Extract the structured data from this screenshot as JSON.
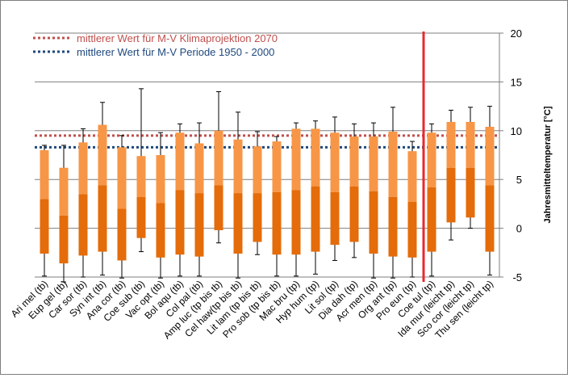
{
  "chart_data": {
    "type": "box",
    "ylabel": "Jahresmitteltemperatur [°C]",
    "ylim": [
      -5,
      20
    ],
    "yticks": [
      -5,
      0,
      5,
      10,
      15,
      20
    ],
    "grid": "horizontal",
    "legend_position": "top-left",
    "colors": {
      "upper_box": "#f79646",
      "lower_box": "#e46c0a",
      "whisker": "#000000",
      "line_2070": "#c0504d",
      "line_1950_2000": "#1f497d",
      "divider": "#e8282f"
    },
    "reference_lines": [
      {
        "name": "mittlerer Wert für M-V Klimaprojektion 2070",
        "value": 9.5,
        "style": "dotted"
      },
      {
        "name": "mittlerer Wert für M-V Periode 1950 - 2000",
        "value": 8.3,
        "style": "dotted"
      }
    ],
    "divider_after_index": 19,
    "categories": [
      "Ari mel (tb)",
      "Eup gel (tb)",
      "Car sor (tb)",
      "Syn int (tb)",
      "Ana cor (tb)",
      "Coe sub (tb)",
      "Vac opt (tb)",
      "Bol aqu (tb)",
      "Col pal (tb)",
      "Amp luc (tp bis tb)",
      "Cel haw(tp bis tb)",
      "Lit lam (tp bis tb)",
      "Pro sob (tp bis tb)",
      "Mac bru (tp)",
      "Hyp hum (tp)",
      "Lit sol (tp)",
      "Dia dah (tp)",
      "Acr men (tp)",
      "Org ant (tp)",
      "Pro eun (tp)",
      "Coe tul (tp)",
      "Ida mur (leicht tp)",
      "Sco cor (leicht tp)",
      "Thu sen (leicht tp)"
    ],
    "boxes": [
      {
        "min": -4.9,
        "q1": -2.6,
        "median": 3.0,
        "q3": 8.0,
        "max": 8.5
      },
      {
        "min": -5.5,
        "q1": -3.6,
        "median": 1.3,
        "q3": 6.2,
        "max": 8.5
      },
      {
        "min": -5.0,
        "q1": -2.8,
        "median": 3.5,
        "q3": 8.8,
        "max": 10.2
      },
      {
        "min": -4.8,
        "q1": -2.4,
        "median": 4.4,
        "q3": 10.6,
        "max": 12.9
      },
      {
        "min": -5.1,
        "q1": -3.3,
        "median": 2.0,
        "q3": 8.3,
        "max": 9.5
      },
      {
        "min": -2.4,
        "q1": -1.0,
        "median": 3.2,
        "q3": 7.4,
        "max": 14.3
      },
      {
        "min": -5.1,
        "q1": -3.0,
        "median": 2.6,
        "q3": 7.5,
        "max": 9.8
      },
      {
        "min": -4.9,
        "q1": -2.7,
        "median": 3.9,
        "q3": 9.8,
        "max": 10.7
      },
      {
        "min": -4.9,
        "q1": -2.9,
        "median": 3.6,
        "q3": 8.7,
        "max": 10.8
      },
      {
        "min": -1.5,
        "q1": -0.2,
        "median": 4.4,
        "q3": 10.0,
        "max": 14.0
      },
      {
        "min": -5.1,
        "q1": -2.6,
        "median": 3.6,
        "q3": 9.1,
        "max": 11.9
      },
      {
        "min": -2.7,
        "q1": -1.4,
        "median": 3.6,
        "q3": 8.4,
        "max": 9.9
      },
      {
        "min": -4.9,
        "q1": -2.7,
        "median": 3.7,
        "q3": 8.9,
        "max": 9.4
      },
      {
        "min": -4.9,
        "q1": -2.7,
        "median": 3.9,
        "q3": 10.2,
        "max": 10.8
      },
      {
        "min": -4.7,
        "q1": -2.4,
        "median": 4.3,
        "q3": 10.2,
        "max": 11.0
      },
      {
        "min": -3.3,
        "q1": -1.7,
        "median": 3.7,
        "q3": 9.8,
        "max": 11.4
      },
      {
        "min": -3.0,
        "q1": -1.4,
        "median": 4.3,
        "q3": 9.4,
        "max": 10.7
      },
      {
        "min": -5.1,
        "q1": -2.6,
        "median": 3.8,
        "q3": 9.4,
        "max": 10.8
      },
      {
        "min": -5.1,
        "q1": -2.9,
        "median": 3.2,
        "q3": 9.9,
        "max": 12.4
      },
      {
        "min": -5.0,
        "q1": -3.0,
        "median": 2.7,
        "q3": 7.9,
        "max": 8.9
      },
      {
        "min": -4.9,
        "q1": -2.4,
        "median": 4.2,
        "q3": 9.8,
        "max": 10.7
      },
      {
        "min": -1.2,
        "q1": 0.6,
        "median": 6.2,
        "q3": 10.9,
        "max": 12.1
      },
      {
        "min": 0.0,
        "q1": 1.1,
        "median": 6.2,
        "q3": 10.9,
        "max": 12.4
      },
      {
        "min": -4.8,
        "q1": -2.4,
        "median": 4.4,
        "q3": 10.4,
        "max": 12.5
      }
    ]
  }
}
